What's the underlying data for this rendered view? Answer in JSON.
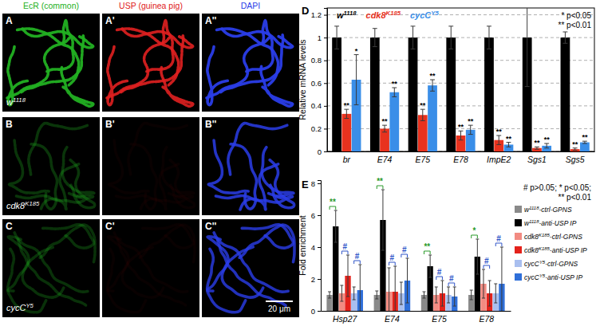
{
  "image_panels": {
    "columns": [
      {
        "title": "EcR (common)",
        "color": "#22b022"
      },
      {
        "title": "USP (guinea pig)",
        "color": "#e02020"
      },
      {
        "title": "DAPI",
        "color": "#2a3de8"
      }
    ],
    "rows": [
      {
        "labels": [
          "A",
          "A'",
          "A''"
        ],
        "genotype": "w1118"
      },
      {
        "labels": [
          "B",
          "B'",
          "B''"
        ],
        "genotype": "cdk8K185"
      },
      {
        "labels": [
          "C",
          "C'",
          "C''"
        ],
        "genotype": "cycCY5"
      }
    ],
    "scale_bar": "20 μm"
  },
  "chart_data": [
    {
      "type": "bar",
      "title": "D",
      "ylabel": "Relative mRNA levels",
      "categories": [
        "br",
        "E74",
        "E75",
        "E78",
        "ImpE2",
        "Sgs1",
        "Sgs5"
      ],
      "ylim": [
        0,
        1.26
      ],
      "yticks": [
        0,
        0.2,
        0.4,
        0.6,
        0.8,
        1,
        1.2
      ],
      "grid": true,
      "legend": "top-left",
      "annotations": [
        "* p<0.05",
        "** p<0.01"
      ],
      "series": [
        {
          "name": "w1118",
          "color": "#000000",
          "values": [
            1,
            1,
            1,
            1,
            1,
            1,
            1
          ],
          "errors": [
            0.1,
            0.08,
            0.1,
            0.1,
            0.1,
            0.43,
            0.05
          ]
        },
        {
          "name": "cdk8K185",
          "color": "#e8321e",
          "values": [
            0.33,
            0.2,
            0.32,
            0.14,
            0.1,
            0.03,
            0.02
          ],
          "errors": [
            0.04,
            0.03,
            0.05,
            0.04,
            0.04,
            0.01,
            0.01
          ],
          "significance": [
            "**",
            "**",
            "**",
            "**",
            "**",
            "**",
            "**"
          ]
        },
        {
          "name": "cycCY5",
          "color": "#3a8ee8",
          "values": [
            0.63,
            0.52,
            0.58,
            0.19,
            0.06,
            0.05,
            0.08
          ],
          "errors": [
            0.22,
            0.04,
            0.05,
            0.04,
            0.02,
            0.02,
            0.01
          ],
          "significance": [
            "*",
            "**",
            "**",
            "**",
            "**",
            "**",
            "**"
          ]
        }
      ]
    },
    {
      "type": "bar",
      "title": "E",
      "ylabel": "Fold enrichment",
      "categories": [
        "Hsp27",
        "E74",
        "E75",
        "E78"
      ],
      "ylim": [
        0,
        8.2
      ],
      "yticks": [
        0,
        2,
        4,
        6,
        8
      ],
      "grid": false,
      "legend": "right",
      "annotations": [
        "# p>0.05; * p<0.05;",
        "** p<0.01"
      ],
      "series": [
        {
          "name": "w1118-ctrl-GPNS",
          "color": "#8a8a8a",
          "values": [
            1,
            1,
            1,
            1
          ],
          "errors": [
            0.2,
            0.25,
            0.2,
            0.3
          ]
        },
        {
          "name": "w1118-anti-USP IP",
          "color": "#000000",
          "values": [
            5.3,
            5.7,
            2.8,
            3.4
          ],
          "errors": [
            1.0,
            1.9,
            0.7,
            1.1
          ],
          "pair_significance": [
            "**",
            "**",
            "**",
            "*"
          ]
        },
        {
          "name": "cdk8K185-ctrl-GPNS",
          "color": "#f28b82",
          "values": [
            1.1,
            1.2,
            1.0,
            1.7
          ],
          "errors": [
            0.5,
            1.5,
            0.5,
            0.9
          ]
        },
        {
          "name": "cdk8K185-anti-USP IP",
          "color": "#e4221b",
          "values": [
            2.2,
            1.2,
            1.1,
            1.1
          ],
          "errors": [
            1.3,
            1.6,
            0.8,
            0.8
          ],
          "pair_significance": [
            "#",
            "#",
            "#",
            "#"
          ]
        },
        {
          "name": "cycCY5-ctrl-GPNS",
          "color": "#a9bfef",
          "values": [
            1.1,
            1.1,
            1.0,
            1.1
          ],
          "errors": [
            0.4,
            0.7,
            0.5,
            0.6
          ]
        },
        {
          "name": "cycCY5-anti-USP IP",
          "color": "#2f6fd9",
          "values": [
            1.3,
            1.9,
            0.9,
            1.7
          ],
          "errors": [
            1.6,
            1.4,
            0.6,
            2.3
          ],
          "pair_significance": [
            "#",
            "#",
            "#",
            "#"
          ]
        }
      ]
    }
  ]
}
